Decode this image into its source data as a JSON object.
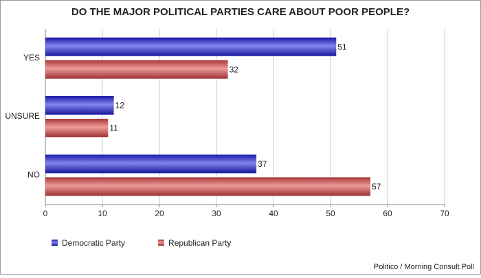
{
  "chart_data": {
    "type": "bar",
    "orientation": "horizontal",
    "title": "DO THE MAJOR POLITICAL PARTIES CARE ABOUT POOR PEOPLE?",
    "categories": [
      "YES",
      "UNSURE",
      "NO"
    ],
    "series": [
      {
        "name": "Democratic Party",
        "color": "#1f1fe0",
        "values": [
          51,
          12,
          37
        ]
      },
      {
        "name": "Republican Party",
        "color": "#e04848",
        "values": [
          32,
          11,
          57
        ]
      }
    ],
    "xlim": [
      0,
      70
    ],
    "xticks": [
      0,
      10,
      20,
      30,
      40,
      50,
      60,
      70
    ],
    "grid": true,
    "legend": "bottom-left",
    "source": "Politico / Morning Consult Poll"
  }
}
